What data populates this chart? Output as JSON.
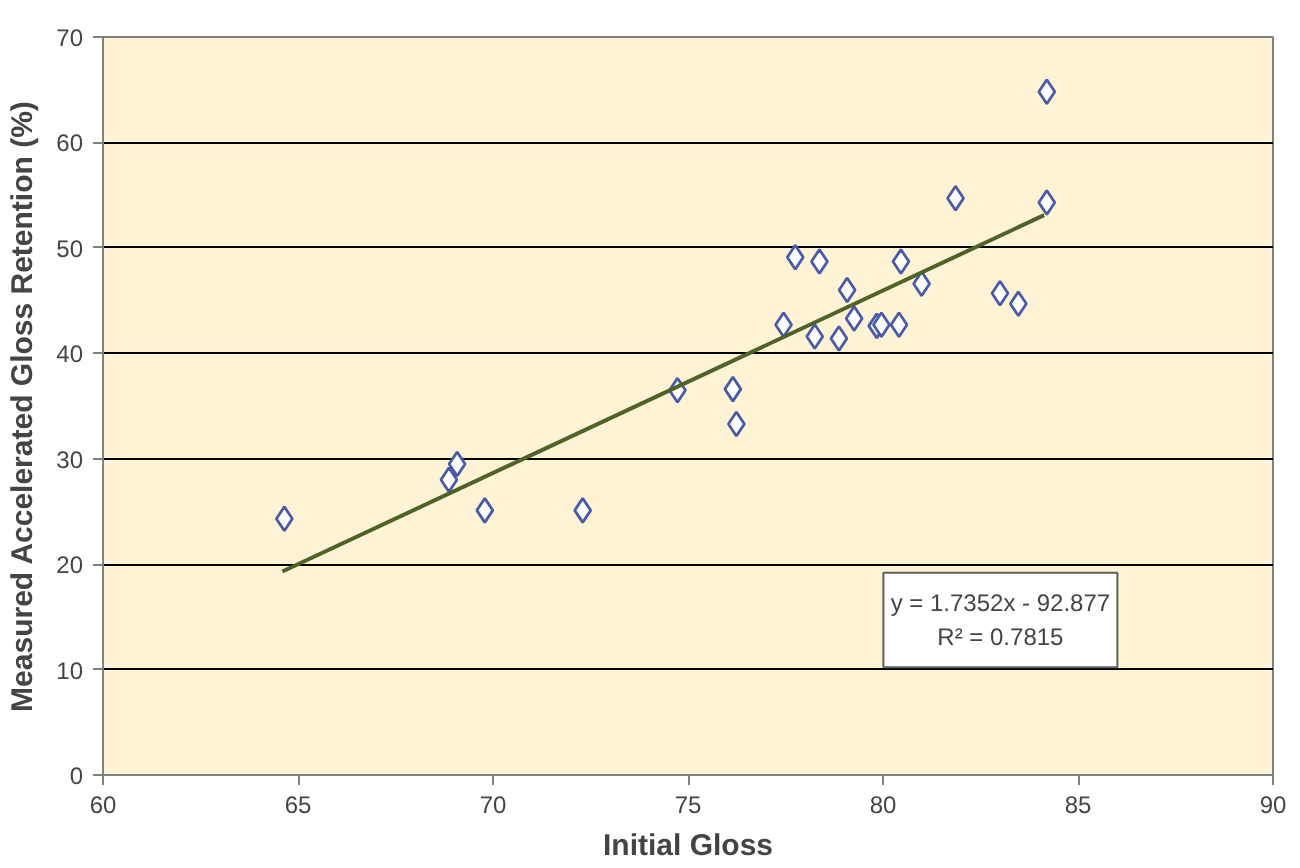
{
  "chart_data": {
    "type": "scatter",
    "xlabel": "Initial Gloss",
    "ylabel": "Measured Accelerated Gloss Retention (%)",
    "xlim": [
      60,
      90
    ],
    "xticks": [
      60,
      65,
      70,
      75,
      80,
      85,
      90
    ],
    "ylim": [
      0,
      70
    ],
    "yticks": [
      0,
      10,
      20,
      30,
      40,
      50,
      60,
      70
    ],
    "grid": "y",
    "series": [
      {
        "color": "#4a5aa8",
        "marker": "diamond",
        "x": [
          64.65,
          68.87,
          69.08,
          69.79,
          72.3,
          74.73,
          76.15,
          76.24,
          77.45,
          77.75,
          78.37,
          78.25,
          78.87,
          79.08,
          79.26,
          79.84,
          79.96,
          80.41,
          80.46,
          80.99,
          81.86,
          83.0,
          83.47,
          84.2,
          84.2
        ],
        "values": [
          24.3,
          28.0,
          29.5,
          25.1,
          25.1,
          36.5,
          36.6,
          33.3,
          42.7,
          49.1,
          48.7,
          41.6,
          41.4,
          46.0,
          43.3,
          42.6,
          42.7,
          42.7,
          48.7,
          46.6,
          54.7,
          45.7,
          44.7,
          54.3,
          64.8
        ]
      },
      {
        "type": "line",
        "color": "#4f6228",
        "x": [
          64.6,
          84.13
        ],
        "values": [
          19.3,
          53.1
        ]
      }
    ],
    "annotations": [
      "y = 1.7352x - 92.877",
      "R² = 0.7815"
    ]
  }
}
